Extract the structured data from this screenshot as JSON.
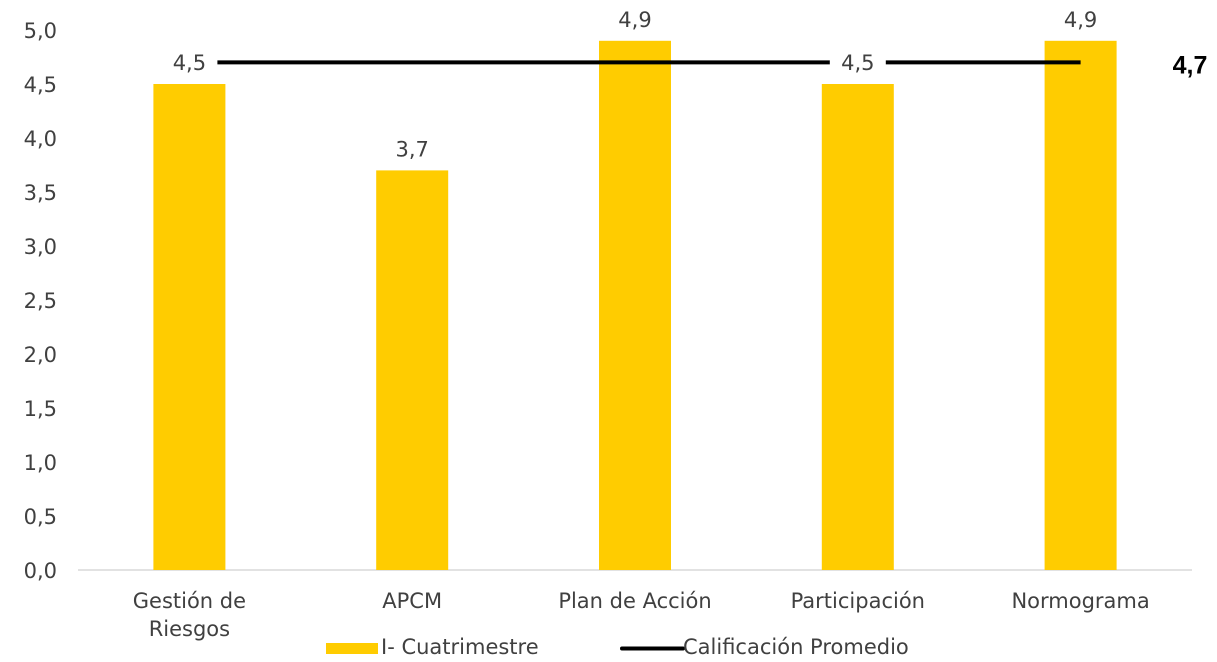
{
  "chart_data": {
    "type": "bar",
    "categories": [
      "Gestión de Riesgos",
      "APCM",
      "Plan de Acción",
      "Participación",
      "Normograma"
    ],
    "category_lines": [
      [
        "Gestión de",
        "Riesgos"
      ],
      [
        "APCM"
      ],
      [
        "Plan de Acción"
      ],
      [
        "Participación"
      ],
      [
        "Normograma"
      ]
    ],
    "series": [
      {
        "name": "I- Cuatrimestre",
        "type": "bar",
        "values": [
          4.5,
          3.7,
          4.9,
          4.5,
          4.9
        ],
        "labels": [
          "4,5",
          "3,7",
          "4,9",
          "4,5",
          "4,9"
        ],
        "color": "#FFCC00"
      },
      {
        "name": "Calificación Promedio",
        "type": "line",
        "values": [
          4.7,
          4.7,
          4.7,
          4.7,
          4.7
        ],
        "label": "4,7",
        "color": "#000000"
      }
    ],
    "ylim": [
      0,
      5
    ],
    "yticks": [
      "0,0",
      "0,5",
      "1,0",
      "1,5",
      "2,0",
      "2,5",
      "3,0",
      "3,5",
      "4,0",
      "4,5",
      "5,0"
    ],
    "ytick_values": [
      0,
      0.5,
      1,
      1.5,
      2,
      2.5,
      3,
      3.5,
      4,
      4.5,
      5
    ],
    "grid": false,
    "legend_position": "bottom",
    "title": "",
    "xlabel": "",
    "ylabel": ""
  }
}
